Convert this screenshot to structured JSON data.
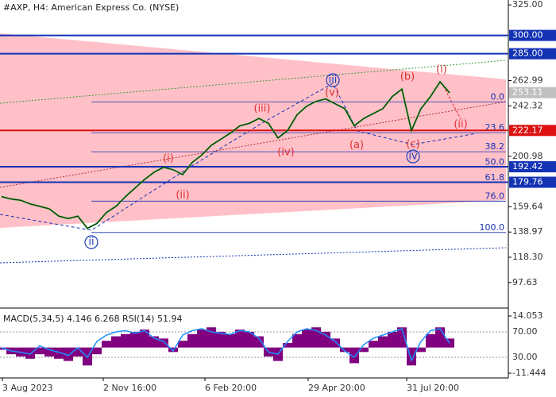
{
  "chart_data": {
    "type": "line",
    "title": "#AXP, H4:  American Express Co. (NYSE)",
    "ylim": [
      76.7,
      329.0
    ],
    "yticks": [
      {
        "value": 325,
        "label": "325.00"
      },
      262.99,
      242.32,
      200.98,
      159.64,
      138.97,
      {
        "value": 118.3,
        "label": "118.30"
      },
      97.63
    ],
    "levels": [
      {
        "value": 300,
        "label": "300.00",
        "color": "#1432b4"
      },
      {
        "value": 285,
        "label": "285.00",
        "color": "#1432b4"
      },
      {
        "value": 222.17,
        "label": "222.17",
        "color": "#dd1111"
      },
      {
        "value": 192.42,
        "label": "192.42",
        "color": "#1432b4"
      },
      {
        "value": 179.76,
        "label": "179.76",
        "color": "#1432b4"
      }
    ],
    "last_price": 253.11,
    "fib_start": 245.6,
    "fib_end": 138.6,
    "fib_levels": [
      {
        "value": 0,
        "label": "0.0"
      },
      23.6,
      38.2,
      {
        "value": 50,
        "label": "50.0"
      },
      61.8,
      {
        "value": 76,
        "label": "76.0"
      },
      {
        "value": 100,
        "label": "100.0"
      }
    ],
    "wave_labels": [
      "ii",
      "(i)",
      "(ii)",
      "(iii)",
      "(iv)",
      "(v)",
      "iii",
      "(a)",
      "(b)",
      "(c)",
      "iv",
      "(i)",
      "(ii)"
    ],
    "x_labels": [
      "3 Aug 2023",
      "2 Nov 16:00",
      "6 Feb 20:00",
      "29 Apr 20:00",
      "31 Jul 20:00"
    ],
    "series": [
      {
        "name": "AXP",
        "color": "#1f9a1f",
        "values": [
          168,
          166,
          165,
          162,
          160,
          158,
          152,
          150,
          152,
          142,
          146,
          155,
          160,
          168,
          175,
          182,
          188,
          192,
          190,
          186,
          196,
          202,
          210,
          215,
          220,
          226,
          228,
          232,
          228,
          216,
          222,
          235,
          242,
          246,
          248,
          244,
          240,
          226,
          232,
          236,
          240,
          250,
          256,
          222,
          240,
          250,
          262,
          253
        ]
      }
    ],
    "indicator": {
      "label": "MACD(5,34,5) 4.146 6.268 RSI(14) 51.94",
      "macd_lim": [
        -11.444,
        14.053
      ],
      "macd_ticks": [
        {
          "value": 14.053,
          "label": "14.053"
        },
        {
          "value": -11.444,
          "label": "-11.444"
        }
      ],
      "rsi_ticks": [
        {
          "value": 70,
          "label": "70.00"
        },
        {
          "value": 30,
          "label": "30.00"
        }
      ],
      "macd": [
        -1,
        -3,
        -4,
        -5,
        -3,
        -4,
        -5,
        -6,
        -4,
        -8,
        -3,
        3,
        5,
        6,
        7,
        8,
        5,
        4,
        -2,
        3,
        6,
        8,
        9,
        7,
        6,
        8,
        7,
        5,
        -4,
        -6,
        2,
        6,
        8,
        9,
        7,
        4,
        -2,
        -7,
        -2,
        3,
        5,
        7,
        9,
        -8,
        -2,
        6,
        9,
        4
      ],
      "rsi": [
        45,
        40,
        38,
        35,
        48,
        42,
        38,
        33,
        45,
        30,
        55,
        65,
        70,
        72,
        68,
        72,
        60,
        55,
        40,
        65,
        72,
        75,
        70,
        68,
        66,
        72,
        70,
        60,
        38,
        35,
        55,
        70,
        75,
        72,
        65,
        55,
        40,
        30,
        50,
        60,
        65,
        70,
        75,
        25,
        55,
        72,
        75,
        52
      ]
    }
  }
}
